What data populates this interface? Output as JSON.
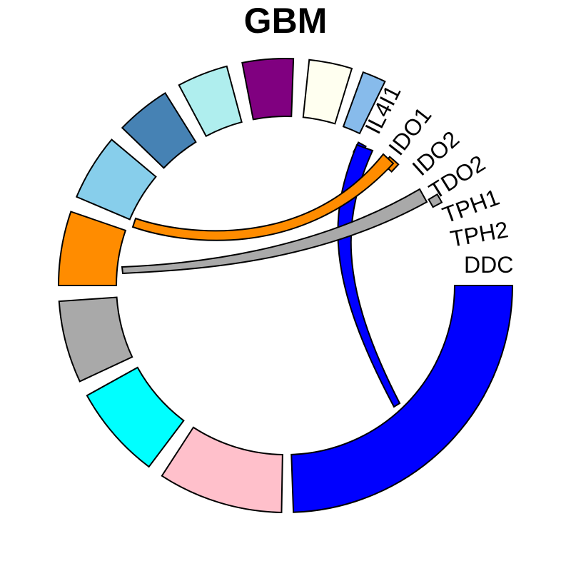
{
  "chart_data": {
    "type": "chord",
    "title": "GBM",
    "sectors": [
      {
        "name": "DDC",
        "color": "#0000FF",
        "labeled": true
      },
      {
        "name": "",
        "color": "#FFC0CB",
        "labeled": false
      },
      {
        "name": "",
        "color": "#00FFFF",
        "labeled": false
      },
      {
        "name": "",
        "color": "#A9A9A9",
        "labeled": false
      },
      {
        "name": "",
        "color": "#FF8C00",
        "labeled": false
      },
      {
        "name": "",
        "color": "#87CEEB",
        "labeled": false
      },
      {
        "name": "",
        "color": "#4682B4",
        "labeled": false
      },
      {
        "name": "",
        "color": "#AFEEEE",
        "labeled": false
      },
      {
        "name": "",
        "color": "#800080",
        "labeled": false
      },
      {
        "name": "",
        "color": "#FFFFF0",
        "labeled": false
      },
      {
        "name": "",
        "color": "#87BBEB",
        "labeled": false
      },
      {
        "name": "IL4I1",
        "color": "#0000FF",
        "labeled": true
      },
      {
        "name": "IDO1",
        "color": "#FF8C00",
        "labeled": true
      },
      {
        "name": "IDO2",
        "color": "#A9A9A9",
        "labeled": true
      },
      {
        "name": "TDO2",
        "color": "#A9A9A9",
        "labeled": true
      },
      {
        "name": "TPH1",
        "color": "#A9A9A9",
        "labeled": true
      },
      {
        "name": "TPH2",
        "color": "#A9A9A9",
        "labeled": true
      }
    ],
    "labels": [
      "IL4I1",
      "IDO1",
      "IDO2",
      "TDO2",
      "TPH1",
      "TPH2",
      "DDC"
    ],
    "links": [
      {
        "from": "DDC",
        "to": "IL4I1",
        "color": "#0000FF"
      },
      {
        "from": "IDO1",
        "to": "orange-sector",
        "color": "#FF8C00"
      },
      {
        "from": "TDO2",
        "to": "gray-sector",
        "color": "#A9A9A9"
      }
    ]
  }
}
